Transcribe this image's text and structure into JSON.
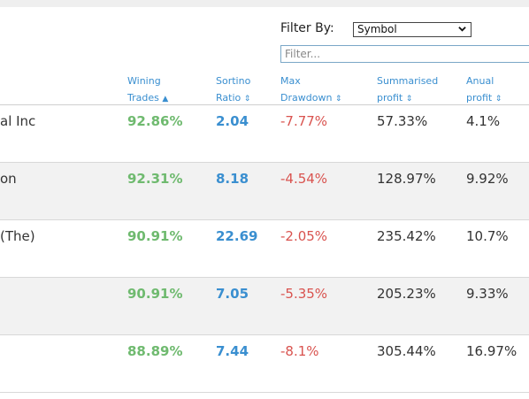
{
  "filter": {
    "label": "Filter By:",
    "select_value": "Symbol",
    "input_placeholder": "Filter..."
  },
  "columns": {
    "winning": {
      "line1": "Wining",
      "line2": "Trades",
      "sort": "▲"
    },
    "sortino": {
      "line1": "Sortino",
      "line2": "Ratio",
      "sort": "⇕"
    },
    "drawdown": {
      "line1": "Max",
      "line2": "Drawdown",
      "sort": "⇕"
    },
    "summarised": {
      "line1": "Summarised",
      "line2": "profit",
      "sort": "⇕"
    },
    "annual": {
      "line1": "Anual",
      "line2": "profit",
      "sort": "⇕"
    }
  },
  "rows": [
    {
      "name": "al Inc",
      "winning": "92.86%",
      "sortino": "2.04",
      "drawdown": "-7.77%",
      "summarised": "57.33%",
      "annual": "4.1%"
    },
    {
      "name": "on",
      "winning": "92.31%",
      "sortino": "8.18",
      "drawdown": "-4.54%",
      "summarised": "128.97%",
      "annual": "9.92%"
    },
    {
      "name": "(The)",
      "winning": "90.91%",
      "sortino": "22.69",
      "drawdown": "-2.05%",
      "summarised": "235.42%",
      "annual": "10.7%"
    },
    {
      "name": "",
      "winning": "90.91%",
      "sortino": "7.05",
      "drawdown": "-5.35%",
      "summarised": "205.23%",
      "annual": "9.33%"
    },
    {
      "name": "",
      "winning": "88.89%",
      "sortino": "7.44",
      "drawdown": "-8.1%",
      "summarised": "305.44%",
      "annual": "16.97%"
    }
  ]
}
